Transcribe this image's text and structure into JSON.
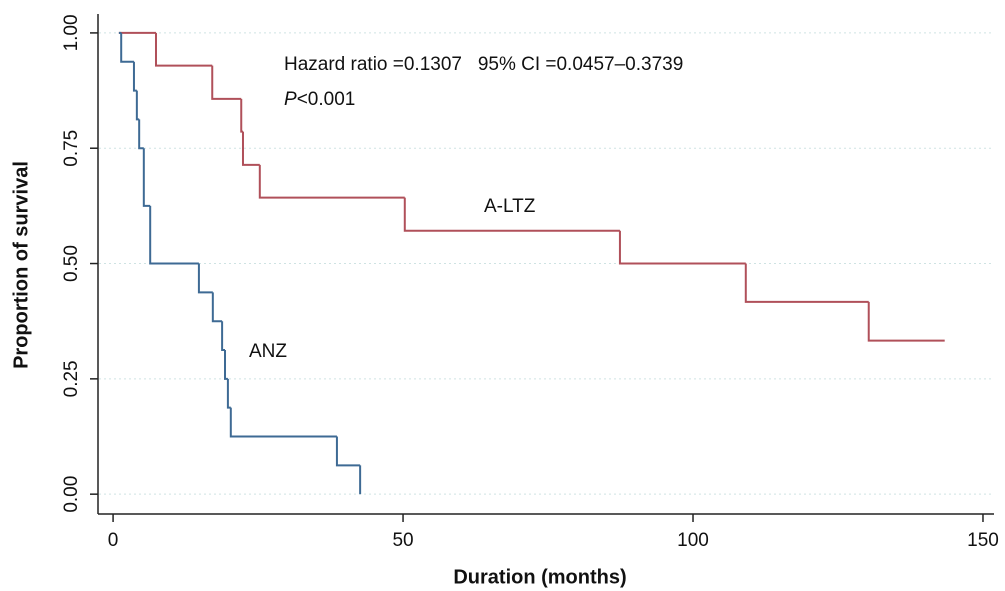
{
  "chart_data": {
    "type": "step",
    "x_label": "Duration (months)",
    "y_label": "Proportion of survival",
    "annotations": [
      "Hazard ratio =0.1307   95% CI =0.0457–0.3739"
    ],
    "p_value": [
      "P",
      "<0.001"
    ],
    "xlim": [
      -2.6,
      151.9
    ],
    "ylim": [
      -0.043,
      1.041
    ],
    "xticks": [
      0,
      50,
      100,
      150
    ],
    "yticks": [
      {
        "value": 0,
        "label": "0.00"
      },
      {
        "value": 0.25,
        "label": "0.25"
      },
      {
        "value": 0.5,
        "label": "0.50"
      },
      {
        "value": 0.75,
        "label": "0.75"
      },
      {
        "value": 1,
        "label": "1.00"
      }
    ],
    "grid": true,
    "series": [
      {
        "name": "A-LTZ",
        "color": "#b0505a",
        "x": [
          1,
          7.4,
          17.1,
          22.1,
          22.4,
          25.3,
          50.3,
          87.4,
          109.1,
          130.3,
          143.4
        ],
        "values": [
          1,
          0.929,
          0.857,
          0.786,
          0.714,
          0.643,
          0.571,
          0.5,
          0.417,
          0.333,
          0.333
        ]
      },
      {
        "name": "ANZ",
        "color": "#3e6a94",
        "x": [
          1,
          1.4,
          3.6,
          4.1,
          4.5,
          5.3,
          6.4,
          14.8,
          17.2,
          18.8,
          19.3,
          19.8,
          20.3,
          38.6,
          42.6
        ],
        "values": [
          1,
          0.9375,
          0.875,
          0.8125,
          0.75,
          0.625,
          0.5,
          0.4375,
          0.375,
          0.3125,
          0.25,
          0.1875,
          0.125,
          0.0625,
          0
        ]
      }
    ]
  }
}
